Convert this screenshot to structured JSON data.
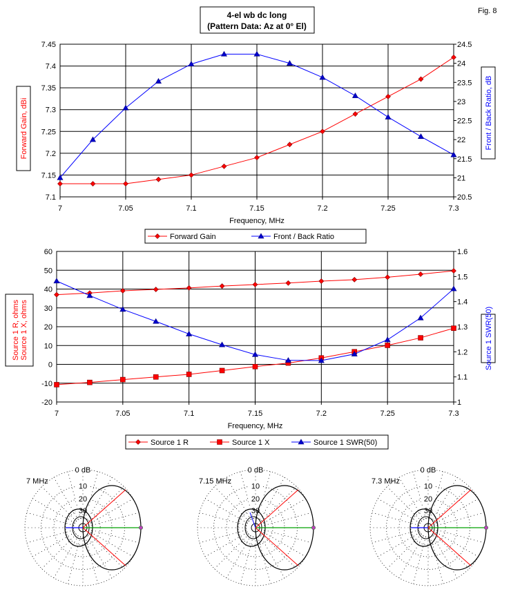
{
  "figure_label": "Fig. 8",
  "title_line1": "4-el wb dc long",
  "title_line2": "(Pattern Data: Az at 0° El)",
  "colors": {
    "red": "#ff0000",
    "blue": "#0000ff",
    "green": "#00a000",
    "marker_red": "#ff0000",
    "marker_blue": "#0000cc"
  },
  "chart_data": [
    {
      "type": "line",
      "xlabel": "Frequency, MHz",
      "ylabel": "Forward Gain,  dBi",
      "y2label": "Front / Back Ratio,  dB",
      "xlim": [
        7,
        7.3
      ],
      "ylim": [
        7.1,
        7.45
      ],
      "y2lim": [
        20.5,
        24.5
      ],
      "grid": true,
      "legend": "bottom",
      "x": [
        7,
        7.025,
        7.05,
        7.075,
        7.1,
        7.125,
        7.15,
        7.175,
        7.2,
        7.225,
        7.25,
        7.275,
        7.3
      ],
      "xticks": [
        "7",
        "7.05",
        "7.1",
        "7.15",
        "7.2",
        "7.25",
        "7.3"
      ],
      "yticks": [
        "7.1",
        "7.15",
        "7.2",
        "7.25",
        "7.3",
        "7.35",
        "7.4",
        "7.45"
      ],
      "y2ticks": [
        "20.5",
        "21",
        "21.5",
        "22",
        "22.5",
        "23",
        "23.5",
        "24",
        "24.5"
      ],
      "series": [
        {
          "name": "Forward Gain",
          "axis": "left",
          "color": "#ff0000",
          "marker": "diamond",
          "values": [
            7.13,
            7.13,
            7.13,
            7.14,
            7.15,
            7.17,
            7.19,
            7.22,
            7.25,
            7.29,
            7.33,
            7.37,
            7.42
          ]
        },
        {
          "name": "Front / Back Ratio",
          "axis": "right",
          "color": "#0000ff",
          "marker": "triangle",
          "values": [
            21.0,
            22.0,
            22.83,
            23.53,
            23.98,
            24.24,
            24.24,
            24.0,
            23.63,
            23.15,
            22.59,
            22.08,
            21.6
          ]
        }
      ]
    },
    {
      "type": "line",
      "xlabel": "Frequency, MHz",
      "ylabel": "Source 1 R,  ohms",
      "ylabel2": "Source 1 X,  ohms",
      "y2label": "Source 1 SWR(50)",
      "xlim": [
        7,
        7.3
      ],
      "ylim": [
        -20,
        60
      ],
      "y2lim": [
        1,
        1.6
      ],
      "grid": true,
      "legend": "bottom",
      "x": [
        7,
        7.025,
        7.05,
        7.075,
        7.1,
        7.125,
        7.15,
        7.175,
        7.2,
        7.225,
        7.25,
        7.275,
        7.3
      ],
      "xticks": [
        "7",
        "7.05",
        "7.1",
        "7.15",
        "7.2",
        "7.25",
        "7.3"
      ],
      "yticks": [
        "-20",
        "-10",
        "0",
        "10",
        "20",
        "30",
        "40",
        "50",
        "60"
      ],
      "y2ticks": [
        "1",
        "1.1",
        "1.2",
        "1.3",
        "1.4",
        "1.5",
        "1.6"
      ],
      "series": [
        {
          "name": "Source 1 R",
          "axis": "left",
          "color": "#ff0000",
          "marker": "diamond",
          "values": [
            37,
            37.9,
            39.1,
            39.8,
            40.6,
            41.6,
            42.4,
            43.2,
            44.2,
            45,
            46.3,
            47.9,
            49.7
          ]
        },
        {
          "name": "Source 1 X",
          "axis": "left",
          "color": "#ff0000",
          "marker": "square",
          "values": [
            -10.8,
            -9.6,
            -8.1,
            -6.7,
            -5.3,
            -3.3,
            -1.2,
            0.7,
            3.4,
            6.7,
            10.1,
            14.1,
            19.2
          ]
        },
        {
          "name": "Source 1 SWR(50)",
          "axis": "right",
          "color": "#0000ff",
          "marker": "triangle",
          "values": [
            1.482,
            1.424,
            1.369,
            1.321,
            1.271,
            1.228,
            1.189,
            1.166,
            1.165,
            1.191,
            1.248,
            1.335,
            1.451
          ]
        }
      ]
    },
    {
      "type": "polar",
      "ring_labels": [
        "0 dB",
        "10",
        "20",
        "30"
      ],
      "plots": [
        {
          "label": "7 MHz"
        },
        {
          "label": "7.15 MHz"
        },
        {
          "label": "7.3 MHz"
        }
      ]
    }
  ]
}
